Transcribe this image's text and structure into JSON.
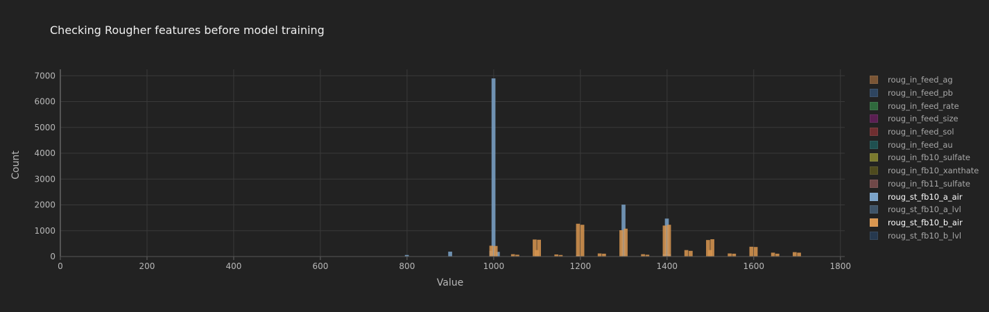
{
  "chart_data": {
    "type": "bar",
    "title": "Checking Rougher features before model training",
    "xlabel": "Value",
    "ylabel": "Count",
    "xlim": [
      0,
      1810
    ],
    "ylim": [
      0,
      7250
    ],
    "xticks": [
      0,
      200,
      400,
      600,
      800,
      1000,
      1200,
      1400,
      1600,
      1800
    ],
    "yticks": [
      0,
      1000,
      2000,
      3000,
      4000,
      5000,
      6000,
      7000
    ],
    "grid": true,
    "legend_position": "right",
    "bin_width": 10,
    "series": [
      {
        "name": "roug_in_feed_ag",
        "color": "#7a5535",
        "visible": false,
        "points": []
      },
      {
        "name": "roug_in_feed_pb",
        "color": "#2e4560",
        "visible": false,
        "points": []
      },
      {
        "name": "roug_in_feed_rate",
        "color": "#2f6a3d",
        "visible": false,
        "points": []
      },
      {
        "name": "roug_in_feed_size",
        "color": "#5a1f52",
        "visible": false,
        "points": []
      },
      {
        "name": "roug_in_feed_sol",
        "color": "#6f2e30",
        "visible": false,
        "points": []
      },
      {
        "name": "roug_in_feed_au",
        "color": "#1f5050",
        "visible": false,
        "points": []
      },
      {
        "name": "roug_in_fb10_sulfate",
        "color": "#7b7a2e",
        "visible": false,
        "points": []
      },
      {
        "name": "roug_in_fb10_xanthate",
        "color": "#4e4a1e",
        "visible": false,
        "points": []
      },
      {
        "name": "roug_in_fb11_sulfate",
        "color": "#704848",
        "visible": false,
        "points": []
      },
      {
        "name": "roug_st_fb10_a_air",
        "color": "#7ba3c9",
        "visible": true,
        "points": [
          [
            160,
            8
          ],
          [
            240,
            6
          ],
          [
            320,
            5
          ],
          [
            400,
            6
          ],
          [
            500,
            8
          ],
          [
            600,
            6
          ],
          [
            700,
            5
          ],
          [
            800,
            60
          ],
          [
            900,
            190
          ],
          [
            995,
            220
          ],
          [
            1000,
            6900
          ],
          [
            1010,
            180
          ],
          [
            1100,
            40
          ],
          [
            1195,
            60
          ],
          [
            1300,
            2010
          ],
          [
            1395,
            90
          ],
          [
            1400,
            1470
          ],
          [
            1405,
            90
          ],
          [
            1500,
            30
          ],
          [
            1600,
            15
          ],
          [
            1700,
            10
          ]
        ]
      },
      {
        "name": "roug_st_fb10_a_lvl",
        "color": "#3f5468",
        "visible": false,
        "points": []
      },
      {
        "name": "roug_st_fb10_b_air",
        "color": "#d99650",
        "visible": true,
        "points": [
          [
            995,
            420
          ],
          [
            1005,
            410
          ],
          [
            1045,
            90
          ],
          [
            1055,
            70
          ],
          [
            1095,
            660
          ],
          [
            1100,
            250
          ],
          [
            1105,
            650
          ],
          [
            1145,
            80
          ],
          [
            1155,
            60
          ],
          [
            1195,
            1270
          ],
          [
            1205,
            1230
          ],
          [
            1245,
            120
          ],
          [
            1255,
            110
          ],
          [
            1295,
            1020
          ],
          [
            1305,
            1080
          ],
          [
            1345,
            90
          ],
          [
            1355,
            70
          ],
          [
            1395,
            1200
          ],
          [
            1405,
            1230
          ],
          [
            1445,
            250
          ],
          [
            1455,
            220
          ],
          [
            1495,
            640
          ],
          [
            1500,
            250
          ],
          [
            1505,
            670
          ],
          [
            1545,
            120
          ],
          [
            1555,
            110
          ],
          [
            1595,
            380
          ],
          [
            1605,
            370
          ],
          [
            1645,
            150
          ],
          [
            1655,
            110
          ],
          [
            1695,
            170
          ],
          [
            1705,
            150
          ]
        ]
      },
      {
        "name": "roug_st_fb10_b_lvl",
        "color": "#26394f",
        "visible": false,
        "points": []
      }
    ]
  }
}
